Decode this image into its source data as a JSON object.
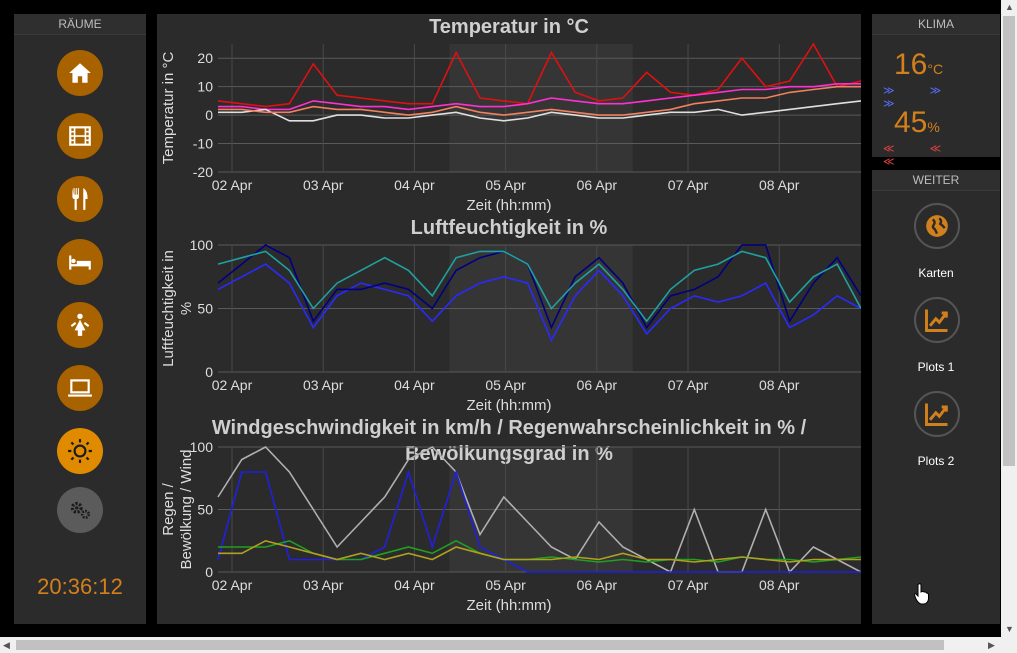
{
  "rooms": {
    "header": "RÄUME",
    "buttons": [
      {
        "name": "home-icon"
      },
      {
        "name": "film-icon"
      },
      {
        "name": "dining-icon"
      },
      {
        "name": "bed-icon"
      },
      {
        "name": "child-icon"
      },
      {
        "name": "laptop-icon"
      },
      {
        "name": "sun-icon"
      },
      {
        "name": "gears-icon"
      }
    ],
    "clock": "20:36:12"
  },
  "klima": {
    "header": "KLIMA",
    "temp": "16",
    "temp_unit": "°C",
    "temp_arrows": "≫ ≫ ≫",
    "humidity": "45",
    "humidity_unit": "%",
    "humidity_arrows": "≪ ≪ ≪",
    "colors": {
      "value": "#d2801b",
      "down": "#5a6cff",
      "up": "#e04040"
    }
  },
  "weiter": {
    "header": "WEITER",
    "items": [
      {
        "label": "Karten",
        "icon": "globe-icon"
      },
      {
        "label": "Plots 1",
        "icon": "chart-icon"
      },
      {
        "label": "Plots 2",
        "icon": "chart-icon"
      }
    ]
  },
  "chart_data": [
    {
      "type": "line",
      "title": "Temperatur in °C",
      "ylabel": "Temperatur in °C",
      "xlabel": "Zeit (hh:mm)",
      "x_ticks": [
        "02 Apr",
        "03 Apr",
        "04 Apr",
        "05 Apr",
        "06 Apr",
        "07 Apr",
        "08 Apr"
      ],
      "y_ticks": [
        "20",
        "10",
        "0",
        "-10",
        "-20"
      ],
      "ylim": [
        -20,
        25
      ],
      "series": [
        {
          "color": "#e01010",
          "values": [
            5,
            4,
            3,
            4,
            18,
            7,
            6,
            5,
            4,
            4,
            22,
            6,
            5,
            4,
            22,
            8,
            5,
            6,
            15,
            8,
            7,
            9,
            20,
            10,
            12,
            25,
            10,
            12
          ]
        },
        {
          "color": "#ff30d0",
          "values": [
            3,
            3,
            2,
            2,
            5,
            4,
            3,
            3,
            2,
            3,
            4,
            3,
            3,
            4,
            6,
            5,
            4,
            4,
            5,
            6,
            7,
            8,
            9,
            9,
            10,
            10,
            11,
            11
          ]
        },
        {
          "color": "#e0e0e0",
          "values": [
            1,
            1,
            2,
            -2,
            -2,
            0,
            0,
            -1,
            -1,
            0,
            1,
            -1,
            -2,
            -1,
            1,
            0,
            -1,
            -1,
            0,
            1,
            1,
            2,
            0,
            1,
            2,
            3,
            4,
            5
          ]
        },
        {
          "color": "#f08060",
          "values": [
            2,
            2,
            1,
            1,
            3,
            2,
            2,
            1,
            0,
            1,
            3,
            1,
            0,
            1,
            2,
            1,
            0,
            0,
            1,
            2,
            4,
            5,
            6,
            6,
            8,
            9,
            10,
            10
          ]
        }
      ]
    },
    {
      "type": "line",
      "title": "Luftfeuchtigkeit in %",
      "ylabel": "Luftfeuchtigkeit in %",
      "xlabel": "Zeit (hh:mm)",
      "x_ticks": [
        "02 Apr",
        "03 Apr",
        "04 Apr",
        "05 Apr",
        "06 Apr",
        "07 Apr",
        "08 Apr"
      ],
      "y_ticks": [
        "100",
        "50",
        "0"
      ],
      "ylim": [
        0,
        100
      ],
      "series": [
        {
          "color": "#2a2aff",
          "values": [
            65,
            75,
            85,
            70,
            35,
            60,
            70,
            65,
            60,
            40,
            60,
            70,
            75,
            70,
            25,
            60,
            80,
            60,
            30,
            50,
            60,
            55,
            60,
            70,
            35,
            45,
            60,
            50
          ]
        },
        {
          "color": "#000080",
          "values": [
            70,
            85,
            100,
            90,
            40,
            65,
            65,
            70,
            65,
            50,
            80,
            90,
            95,
            85,
            35,
            75,
            90,
            70,
            35,
            60,
            65,
            75,
            100,
            100,
            40,
            70,
            90,
            60
          ]
        },
        {
          "color": "#20a0a0",
          "values": [
            85,
            90,
            95,
            80,
            50,
            70,
            80,
            90,
            80,
            60,
            90,
            95,
            95,
            85,
            50,
            70,
            85,
            65,
            40,
            65,
            80,
            85,
            95,
            90,
            55,
            75,
            85,
            50
          ]
        }
      ]
    },
    {
      "type": "line",
      "title": "Windgeschwindigkeit in km/h / Regenwahrscheinlichkeit in % / Bewölkungsgrad in %",
      "ylabel": "Regen / Bewölkung / Wind",
      "xlabel": "Zeit (hh:mm)",
      "x_ticks": [
        "02 Apr",
        "03 Apr",
        "04 Apr",
        "05 Apr",
        "06 Apr",
        "07 Apr",
        "08 Apr"
      ],
      "y_ticks": [
        "100",
        "50",
        "0"
      ],
      "ylim": [
        0,
        100
      ],
      "series": [
        {
          "color": "#b0b0b0",
          "values": [
            60,
            90,
            100,
            80,
            50,
            20,
            40,
            60,
            90,
            100,
            80,
            30,
            60,
            40,
            20,
            10,
            40,
            20,
            10,
            0,
            50,
            0,
            0,
            50,
            0,
            20,
            10,
            0
          ]
        },
        {
          "color": "#2020e0",
          "values": [
            10,
            80,
            80,
            10,
            10,
            10,
            10,
            20,
            80,
            20,
            80,
            20,
            10,
            0,
            0,
            0,
            0,
            0,
            0,
            0,
            0,
            0,
            0,
            0,
            0,
            0,
            0,
            0
          ]
        },
        {
          "color": "#20a020",
          "values": [
            20,
            20,
            20,
            25,
            15,
            10,
            10,
            15,
            20,
            15,
            25,
            15,
            10,
            10,
            12,
            10,
            8,
            10,
            8,
            10,
            10,
            8,
            12,
            10,
            10,
            8,
            10,
            12
          ]
        },
        {
          "color": "#b0a020",
          "values": [
            15,
            15,
            25,
            20,
            15,
            10,
            15,
            10,
            15,
            10,
            20,
            15,
            10,
            10,
            10,
            12,
            10,
            15,
            10,
            10,
            8,
            10,
            12,
            10,
            8,
            10,
            10,
            10
          ]
        }
      ]
    }
  ]
}
